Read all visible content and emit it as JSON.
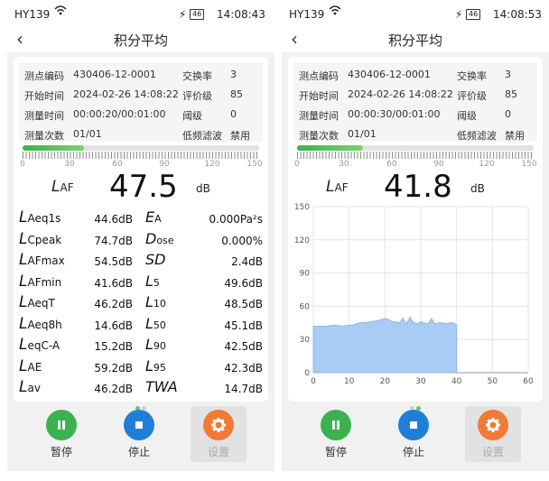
{
  "colors": {
    "accent_green": "#3cb24f",
    "accent_blue": "#1f7fd7",
    "accent_orange": "#f07a36",
    "chart_fill": "#a8ccf3",
    "chart_line": "#8ab8ec"
  },
  "status": {
    "carrier": "HY139",
    "battery": "46"
  },
  "screens": [
    {
      "time": "14:08:43",
      "title": "积分平均",
      "info": {
        "point_code_label": "测点编码",
        "point_code": "430406-12-0001",
        "exchange_label": "交换率",
        "exchange": "3",
        "start_label": "开始时间",
        "start": "2024-02-26 14:08:22",
        "eval_label": "评价级",
        "eval": "85",
        "duration_label": "测量时间",
        "duration": "00:00:20/00:01:00",
        "threshold_label": "阈级",
        "threshold": "0",
        "count_label": "测量次数",
        "count": "01/01",
        "lowfreq_label": "低频滤波",
        "lowfreq": "禁用"
      },
      "level": {
        "fill_fraction": 0.26,
        "scale": [
          "0",
          "30",
          "60",
          "90",
          "120",
          "150"
        ]
      },
      "main": {
        "L": "L",
        "sub": "AF",
        "value": "47.5",
        "unit": "dB"
      },
      "left_metrics": [
        {
          "L": "L",
          "sub": "Aeq1s",
          "value": "44.6dB"
        },
        {
          "L": "L",
          "sub": "Cpeak",
          "value": "74.7dB"
        },
        {
          "L": "L",
          "sub": "AFmax",
          "value": "54.5dB"
        },
        {
          "L": "L",
          "sub": "AFmin",
          "value": "41.6dB"
        },
        {
          "L": "L",
          "sub": "AeqT",
          "value": "46.2dB"
        },
        {
          "L": "L",
          "sub": "Aeq8h",
          "value": "14.6dB"
        },
        {
          "L": "L",
          "sub": "eqC-A",
          "value": "15.2dB"
        },
        {
          "L": "L",
          "sub": "AE",
          "value": "59.2dB"
        },
        {
          "L": "L",
          "sub": "av",
          "value": "46.2dB"
        }
      ],
      "right_metrics": [
        {
          "L": "E",
          "sub": "A",
          "value": "0.000Pa²s"
        },
        {
          "L": "D",
          "sub": "ose",
          "value": "0.000%"
        },
        {
          "L": "SD",
          "sub": "",
          "value": "2.4dB"
        },
        {
          "L": "L",
          "sub": "5",
          "value": "49.6dB"
        },
        {
          "L": "L",
          "sub": "10",
          "value": "48.5dB"
        },
        {
          "L": "L",
          "sub": "50",
          "value": "45.1dB"
        },
        {
          "L": "L",
          "sub": "90",
          "value": "42.5dB"
        },
        {
          "L": "L",
          "sub": "95",
          "value": "42.3dB"
        },
        {
          "L": "TWA",
          "sub": "",
          "value": "14.7dB"
        }
      ],
      "buttons": {
        "pause": "暂停",
        "stop": "停止",
        "settings": "设置"
      }
    },
    {
      "time": "14:08:53",
      "title": "积分平均",
      "info": {
        "point_code_label": "测点编码",
        "point_code": "430406-12-0001",
        "exchange_label": "交换率",
        "exchange": "3",
        "start_label": "开始时间",
        "start": "2024-02-26 14:08:22",
        "eval_label": "评价级",
        "eval": "85",
        "duration_label": "测量时间",
        "duration": "00:00:30/00:01:00",
        "threshold_label": "阈级",
        "threshold": "0",
        "count_label": "测量次数",
        "count": "01/01",
        "lowfreq_label": "低频滤波",
        "lowfreq": "禁用"
      },
      "level": {
        "fill_fraction": 0.28,
        "scale": [
          "0",
          "30",
          "60",
          "90",
          "120",
          "150"
        ]
      },
      "main": {
        "L": "L",
        "sub": "AF",
        "value": "41.8",
        "unit": "dB"
      },
      "buttons": {
        "pause": "暂停",
        "stop": "停止",
        "settings": "设置"
      }
    }
  ],
  "chart_data": {
    "type": "area",
    "x_ticks": [
      "0",
      "10",
      "20",
      "30",
      "40",
      "50",
      "60"
    ],
    "y_ticks": [
      "0",
      "30",
      "60",
      "90",
      "120",
      "150"
    ],
    "xlim": [
      0,
      60
    ],
    "ylim": [
      0,
      150
    ],
    "grid": true,
    "x": [
      0,
      1,
      2,
      3,
      4,
      5,
      6,
      7,
      8,
      9,
      10,
      11,
      12,
      13,
      14,
      15,
      16,
      17,
      18,
      19,
      20,
      21,
      22,
      23,
      24,
      25,
      26,
      27,
      28,
      29,
      30,
      31,
      32,
      33,
      34,
      35,
      36,
      37,
      38,
      39,
      40
    ],
    "values": [
      42,
      42,
      42,
      42,
      42,
      42.5,
      43,
      42.5,
      42,
      42.5,
      43,
      43,
      44,
      45,
      45,
      45.5,
      46,
      46.5,
      47,
      48,
      49,
      48,
      46,
      46,
      45,
      49,
      44,
      50,
      45,
      44,
      46,
      45,
      44,
      49,
      44,
      45,
      45,
      44,
      45,
      45,
      43
    ]
  }
}
